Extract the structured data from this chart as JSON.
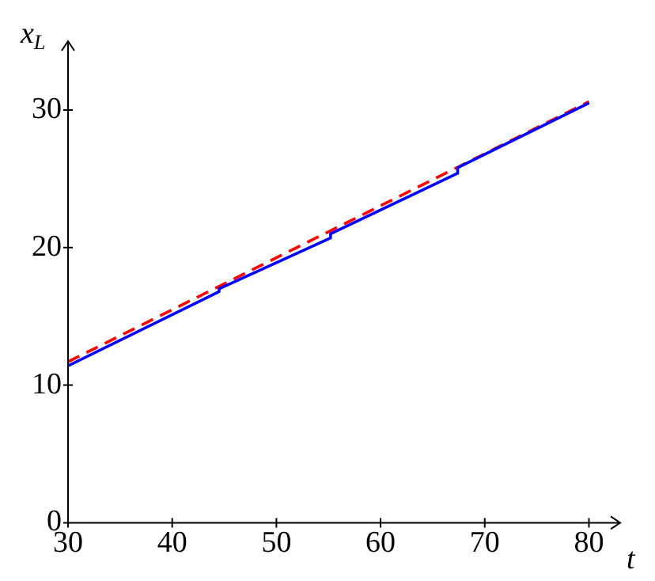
{
  "chart_data": {
    "type": "line",
    "xlabel": "t",
    "ylabel": "x$_{L}$",
    "xlim": [
      30,
      83
    ],
    "ylim": [
      0,
      35
    ],
    "xticks": [
      30,
      40,
      50,
      60,
      70,
      80
    ],
    "yticks": [
      0,
      10,
      20,
      30
    ],
    "grid": false,
    "legend": false,
    "marker": "none",
    "series": [
      {
        "color": "#0000ff",
        "line_style": "solid",
        "x": [
          30,
          44.5,
          44.5,
          55.2,
          55.2,
          67.4,
          67.4,
          80
        ],
        "values": [
          11.4,
          16.8,
          17.0,
          20.7,
          21.0,
          25.4,
          25.8,
          30.5
        ]
      },
      {
        "color": "#ff0000",
        "line_style": "dashed",
        "x": [
          30,
          80
        ],
        "values": [
          11.7,
          30.6
        ]
      }
    ]
  }
}
